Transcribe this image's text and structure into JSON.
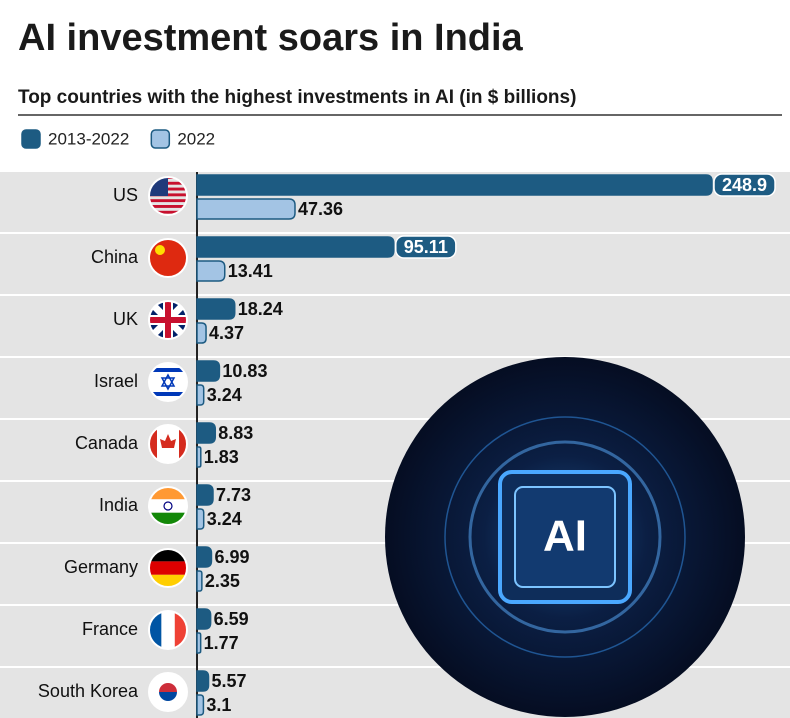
{
  "chart_data": {
    "type": "bar",
    "title": "AI investment soars in India",
    "subtitle": "Top countries with the highest investments in AI (in $ billions)",
    "categories": [
      "US",
      "China",
      "UK",
      "Israel",
      "Canada",
      "India",
      "Germany",
      "France",
      "South Korea"
    ],
    "series": [
      {
        "name": "2013-2022",
        "color": "#1d5b82",
        "values": [
          248.9,
          95.11,
          18.24,
          10.83,
          8.83,
          7.73,
          6.99,
          6.59,
          5.57
        ]
      },
      {
        "name": "2022",
        "color": "#a3c4e4",
        "values": [
          47.36,
          13.41,
          4.37,
          3.24,
          1.83,
          3.24,
          2.35,
          1.77,
          3.1
        ]
      }
    ],
    "image_text": "AI"
  }
}
